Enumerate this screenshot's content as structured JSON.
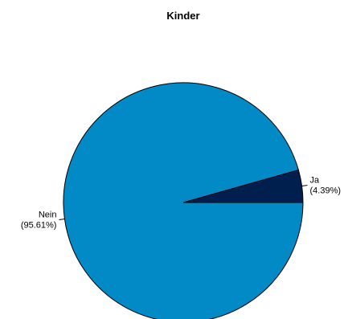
{
  "chart_data": {
    "type": "pie",
    "title": "Kinder",
    "direction": "counterclockwise",
    "start_angle_degrees": 0,
    "slices": [
      {
        "label": "Ja",
        "percent_label": "(4.39%)",
        "value": 4.39,
        "color": "#001e4e"
      },
      {
        "label": "Nein",
        "percent_label": "(95.61%)",
        "value": 95.61,
        "color": "#028ac7"
      }
    ],
    "outline_color": "#000000"
  }
}
